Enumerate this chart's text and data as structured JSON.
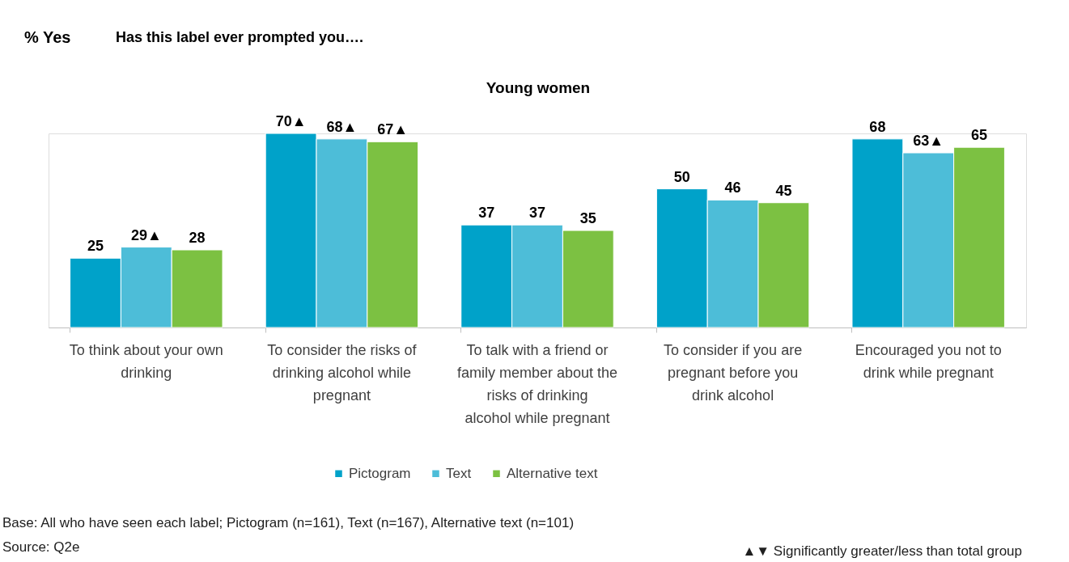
{
  "chart_data": {
    "type": "bar",
    "title": "Has this label ever prompted you….",
    "subtitle": "Young women",
    "categories": [
      "To think about your own drinking",
      "To consider the risks of drinking alcohol while pregnant",
      "To talk with a friend or family member about the risks of drinking alcohol while pregnant",
      "To consider if you are pregnant before you drink alcohol",
      "Encouraged you not to drink while pregnant"
    ],
    "series": [
      {
        "name": "Pictogram",
        "color": "#00a2c9",
        "values": [
          25,
          70,
          37,
          50,
          68
        ],
        "value_labels": [
          "25",
          "70▲",
          "37",
          "50",
          "68"
        ]
      },
      {
        "name": "Text",
        "color": "#4dbdd8",
        "values": [
          29,
          68,
          37,
          46,
          63
        ],
        "value_labels": [
          "29▲",
          "68▲",
          "37",
          "46",
          "63▲"
        ]
      },
      {
        "name": "Alternative text",
        "color": "#7cc142",
        "values": [
          28,
          67,
          35,
          45,
          65
        ],
        "value_labels": [
          "28",
          "67▲",
          "35",
          "45",
          "65"
        ]
      }
    ],
    "legend": "bottom",
    "annotations": [
      "% Yes",
      "Base: All who have seen each label; Pictogram (n=161), Text (n=167), Alternative text (n=101)",
      "Source: Q2e",
      "▲▼ Significantly greater/less than total group"
    ]
  }
}
